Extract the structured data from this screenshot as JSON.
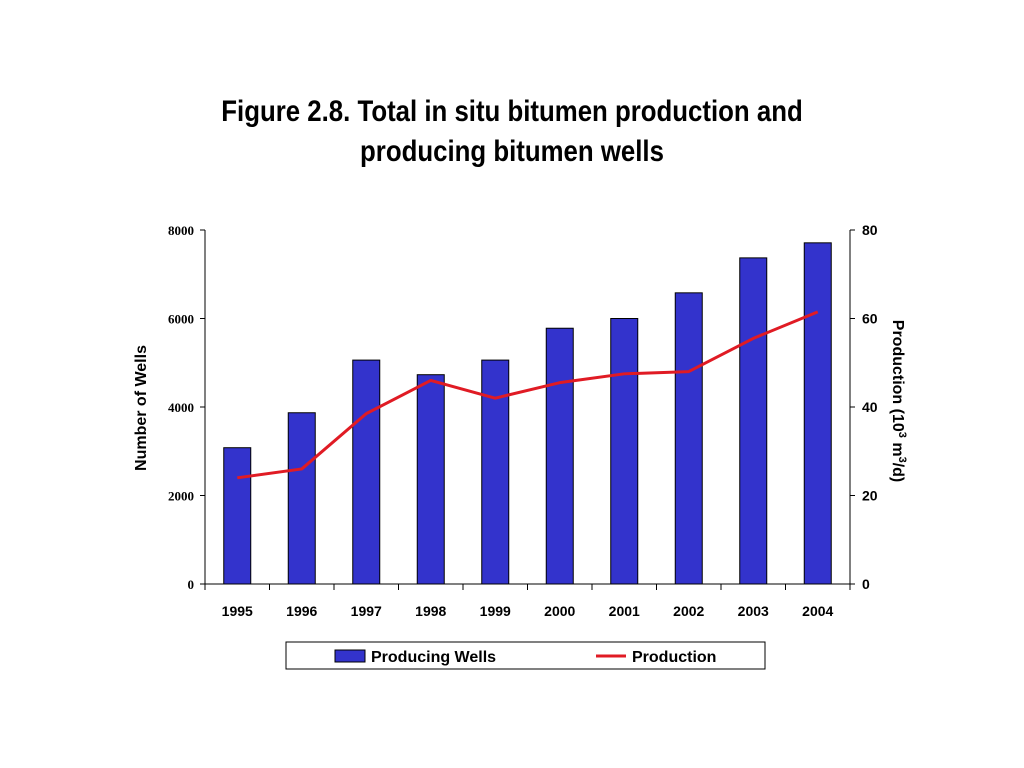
{
  "chart_data": {
    "type": "bar",
    "title_lines": [
      "Figure 2.8. Total in situ bitumen production and",
      "producing bitumen wells"
    ],
    "categories": [
      "1995",
      "1996",
      "1997",
      "1998",
      "1999",
      "2000",
      "2001",
      "2002",
      "2003",
      "2004"
    ],
    "series": [
      {
        "name": "Producing Wells",
        "type": "bar",
        "axis": "left",
        "color": "#3333cc",
        "values": [
          3080,
          3870,
          5060,
          4730,
          5060,
          5780,
          6000,
          6580,
          7370,
          7710
        ]
      },
      {
        "name": "Production",
        "type": "line",
        "axis": "right",
        "color": "#e01b24",
        "values": [
          24,
          26,
          38.5,
          46,
          42,
          45.5,
          47.5,
          48,
          55.5,
          61.5
        ]
      }
    ],
    "ylabel": "Number of Wells",
    "ylabel2": {
      "main": "Production (10",
      "sup1": "3",
      "mid": " m",
      "sup2": "3",
      "end": "/d)"
    },
    "ylim": [
      0,
      8000
    ],
    "yticks": [
      "0",
      "2000",
      "4000",
      "6000",
      "8000"
    ],
    "ylim2": [
      0,
      80
    ],
    "yticks2": [
      "0",
      "20",
      "40",
      "60",
      "80"
    ],
    "grid": false,
    "legend": "bottom"
  }
}
